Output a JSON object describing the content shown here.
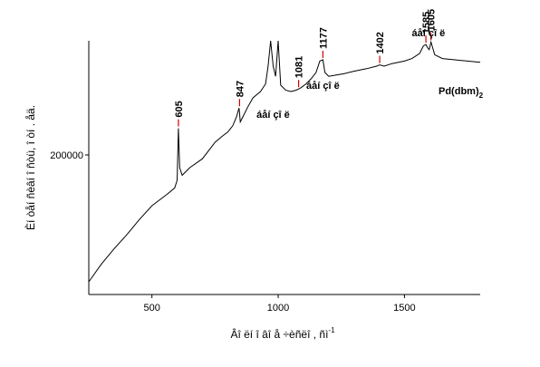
{
  "chart_data": {
    "type": "line",
    "xlabel": "Âî ëí î âî å ÷èñëî , ñì",
    "xlabel_superscript": "-1",
    "ylabel": "Èí òåí ñèâí î ñòü, î òí . åä.",
    "xlim": [
      250,
      1800
    ],
    "ylim": [
      90000,
      290000
    ],
    "x_ticks": [
      500,
      1000,
      1500
    ],
    "y_ticks": [
      200000
    ],
    "series": [
      {
        "name": "Pd(dbm)",
        "name_subscript": "2",
        "color": "#000000",
        "x": [
          250,
          300,
          350,
          400,
          450,
          500,
          540,
          560,
          590,
          600,
          605,
          610,
          620,
          650,
          700,
          750,
          780,
          800,
          820,
          835,
          845,
          847,
          850,
          860,
          880,
          900,
          930,
          950,
          960,
          970,
          980,
          990,
          1000,
          1010,
          1030,
          1050,
          1070,
          1081,
          1090,
          1110,
          1130,
          1150,
          1165,
          1177,
          1185,
          1200,
          1230,
          1260,
          1300,
          1350,
          1390,
          1402,
          1420,
          1450,
          1500,
          1530,
          1560,
          1575,
          1585,
          1590,
          1598,
          1605,
          1620,
          1650,
          1700,
          1750,
          1800
        ],
        "y": [
          100000,
          114000,
          126000,
          137000,
          149000,
          160000,
          166000,
          169000,
          174000,
          180000,
          221000,
          190000,
          184000,
          190000,
          197000,
          210000,
          215000,
          218000,
          223000,
          230000,
          237000,
          233000,
          226000,
          230000,
          238000,
          245000,
          250000,
          256000,
          270000,
          295000,
          270000,
          262000,
          295000,
          255000,
          251000,
          250000,
          251000,
          252000,
          253000,
          256000,
          260000,
          265000,
          274000,
          275000,
          265000,
          262000,
          263000,
          264000,
          266000,
          268000,
          270000,
          271000,
          270000,
          272000,
          274000,
          276000,
          280000,
          286000,
          287000,
          285000,
          283000,
          289000,
          279000,
          276000,
          275000,
          274000,
          273000
        ]
      }
    ],
    "peak_labels": [
      {
        "text": "605",
        "x": 605,
        "y": 221000
      },
      {
        "text": "847",
        "x": 847,
        "y": 237000
      },
      {
        "text": "1081",
        "x": 1081,
        "y": 252000
      },
      {
        "text": "1177",
        "x": 1177,
        "y": 275000
      },
      {
        "text": "1402",
        "x": 1402,
        "y": 271000
      },
      {
        "text": "1585",
        "x": 1585,
        "y": 287000
      },
      {
        "text": "1605",
        "x": 1605,
        "y": 289000
      }
    ],
    "annotations": [
      {
        "text": "áåí çî ë",
        "x": 980
      },
      {
        "text": "áåí çî ë",
        "x": 1177
      },
      {
        "text": "áåí çî ë",
        "x": 1595
      }
    ]
  }
}
